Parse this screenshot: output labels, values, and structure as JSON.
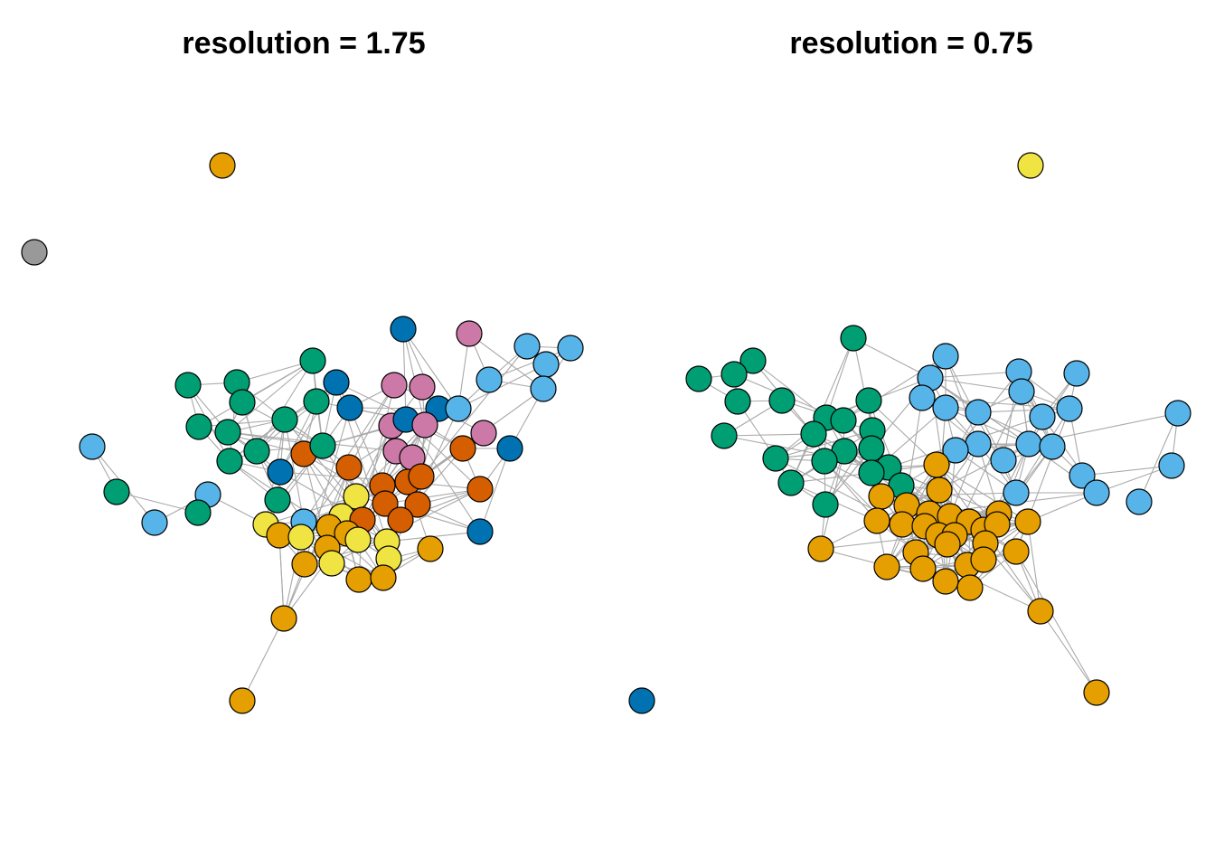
{
  "panels": [
    {
      "title": "resolution = 1.75"
    },
    {
      "title": "resolution = 0.75"
    }
  ],
  "colors": {
    "edge": "#a9a9a9",
    "node_border": "#000000",
    "orange": "#E69F00",
    "sky_blue": "#56B4E9",
    "green": "#009E73",
    "yellow": "#F0E442",
    "blue": "#0072B2",
    "vermillion": "#D55E00",
    "pink": "#CC79A7",
    "grey": "#999999"
  }
}
